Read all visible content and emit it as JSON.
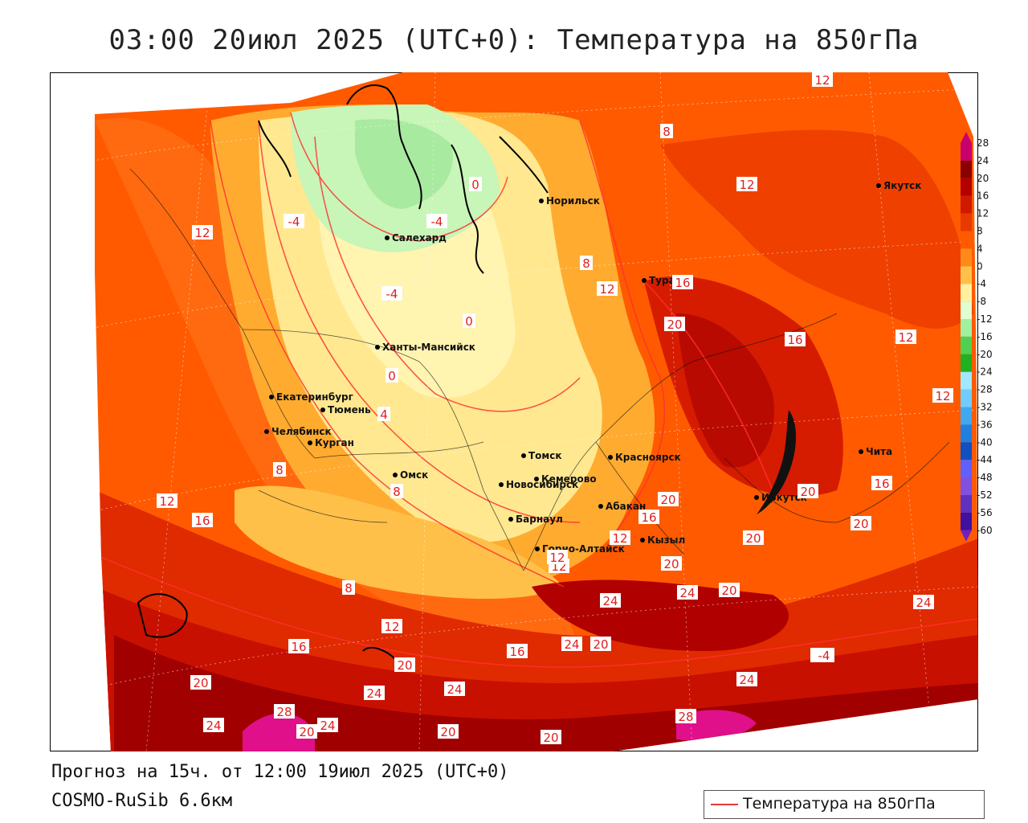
{
  "title": "03:00 20июл 2025 (UTC+0): Температура на 850гПа",
  "forecast": "Прогноз на 15ч. от 12:00 19июл 2025 (UTC+0)",
  "model": "COSMO-RuSib 6.6км",
  "legend": {
    "label": "Температура на 850гПа",
    "line_color": "#e23b3b"
  },
  "colorbar": {
    "ticks": [
      28,
      24,
      20,
      16,
      12,
      8,
      4,
      0,
      -4,
      -8,
      -12,
      -16,
      -20,
      -24,
      -28,
      -32,
      -36,
      -40,
      -44,
      -48,
      -52,
      -56,
      -60
    ],
    "colors": [
      "#c8006e",
      "#8b0000",
      "#b30000",
      "#d01a00",
      "#e83a00",
      "#ff5a00",
      "#ff8a1a",
      "#ffc04a",
      "#fff0a0",
      "#e0ffd0",
      "#a0f0a0",
      "#50d050",
      "#20b020",
      "#a0e8ff",
      "#70ccff",
      "#40a8f0",
      "#2080e0",
      "#1050c0",
      "#6060ff",
      "#8050e0",
      "#6030c0",
      "#4010a0",
      "#7020c0"
    ]
  },
  "cities": [
    {
      "name": "Якутск"
    },
    {
      "name": "Норильск"
    },
    {
      "name": "Салехард"
    },
    {
      "name": "Тура"
    },
    {
      "name": "Ханты-Мансийск"
    },
    {
      "name": "Екатеринбург"
    },
    {
      "name": "Тюмень"
    },
    {
      "name": "Челябинск"
    },
    {
      "name": "Курган"
    },
    {
      "name": "Омск"
    },
    {
      "name": "Томск"
    },
    {
      "name": "Красноярск"
    },
    {
      "name": "Новосибирск"
    },
    {
      "name": "Кемерово"
    },
    {
      "name": "Абакан"
    },
    {
      "name": "Иркутск"
    },
    {
      "name": "Барнаул"
    },
    {
      "name": "Горно-Алтайск"
    },
    {
      "name": "Кызыл"
    },
    {
      "name": "Чита"
    }
  ],
  "isotherm_labels": [
    "12",
    "8",
    "12",
    "12",
    "-4",
    "-4",
    "0",
    "-4",
    "0",
    "8",
    "12",
    "16",
    "20",
    "16",
    "12",
    "12",
    "0",
    "4",
    "8",
    "8",
    "16",
    "12",
    "16",
    "20",
    "12",
    "20",
    "16",
    "20",
    "12",
    "12",
    "20",
    "8",
    "24",
    "24",
    "20",
    "20",
    "12",
    "16",
    "16",
    "24",
    "20",
    "20",
    "24",
    "24",
    "24",
    "20",
    "20",
    "24",
    "28",
    "24",
    "20",
    "24",
    "20",
    "20",
    "28",
    "-4"
  ],
  "legend_sample_color": "#e23b3b"
}
